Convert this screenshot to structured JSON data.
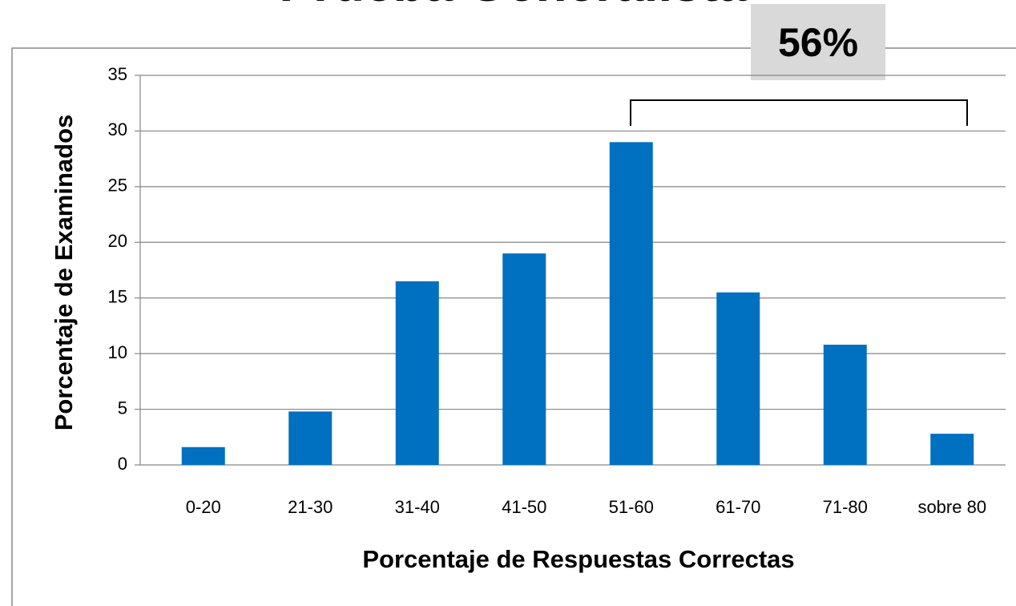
{
  "chart_data": {
    "type": "bar",
    "title": "Prueba Generalista",
    "annotation": "56%",
    "x_label": "Porcentaje de Respuestas Correctas",
    "y_label": "Porcentaje de Examinados",
    "categories": [
      "0-20",
      "21-30",
      "31-40",
      "41-50",
      "51-60",
      "61-70",
      "71-80",
      "sobre 80"
    ],
    "values": [
      1.6,
      4.8,
      16.5,
      19,
      29,
      15.5,
      10.8,
      2.8
    ],
    "color": "#0070c0",
    "ylim": [
      0,
      35
    ],
    "yticks": [
      0,
      5,
      10,
      15,
      20,
      25,
      30,
      35
    ],
    "grid": true
  }
}
